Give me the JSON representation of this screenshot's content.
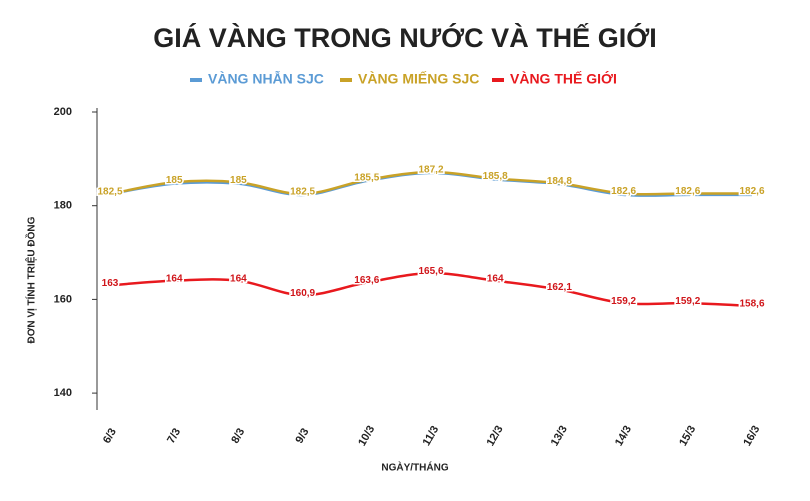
{
  "chart_data": {
    "type": "line",
    "title": "GIÁ VÀNG TRONG NƯỚC VÀ THẾ GIỚI",
    "x_label": "NGÀY/THÁNG",
    "y_label": "ĐƠN VỊ TÍNH TRIỆU ĐỒNG",
    "categories": [
      "6/3",
      "7/3",
      "8/3",
      "9/3",
      "10/3",
      "11/3",
      "12/3",
      "13/3",
      "14/3",
      "15/3",
      "16/3"
    ],
    "series": [
      {
        "name": "VÀNG NHẪN SJC",
        "color": "#5b9bd5",
        "values": [
          182.5,
          184.7,
          184.7,
          182.3,
          185.3,
          187,
          185.6,
          184.6,
          182.3,
          182.3,
          182.3
        ]
      },
      {
        "name": "VÀNG MIẾNG SJC",
        "color": "#c9a227",
        "values": [
          182.5,
          185,
          185,
          182.5,
          185.5,
          187.2,
          185.8,
          184.8,
          182.6,
          182.6,
          182.6
        ],
        "value_labels": [
          "182,5",
          "185",
          "185",
          "182,5",
          "185,5",
          "187,2",
          "185,8",
          "184,8",
          "182,6",
          "182,6",
          "182,6"
        ]
      },
      {
        "name": "VÀNG THẾ GIỚI",
        "color": "#e8191e",
        "values": [
          163,
          164,
          164,
          160.9,
          163.6,
          165.6,
          164,
          162.1,
          159.2,
          159.2,
          158.6
        ],
        "value_labels": [
          "163",
          "164",
          "164",
          "160,9",
          "163,6",
          "165,6",
          "164",
          "162,1",
          "159,2",
          "159,2",
          "158,6"
        ]
      }
    ],
    "ylim": [
      136,
      200
    ],
    "yticks": [
      140,
      160,
      180,
      200
    ],
    "grid": false
  }
}
